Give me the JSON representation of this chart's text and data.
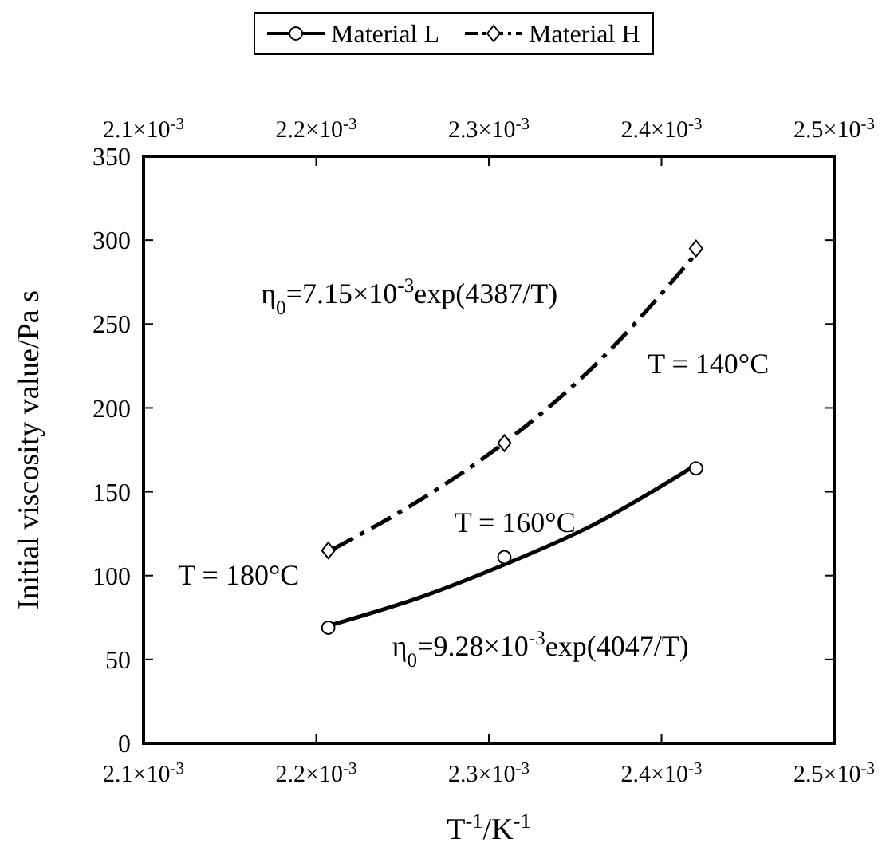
{
  "chart_data": {
    "type": "scatter",
    "xlabel": "T$^{-1}$/K$^{-1}$",
    "ylabel": "Initial viscosity value/Pa s",
    "xlim": [
      0.0021,
      0.0025
    ],
    "xticks": [
      {
        "value": 0.0021,
        "label": "2.1×10$^{-3}$"
      },
      {
        "value": 0.0022,
        "label": "2.2×10$^{-3}$"
      },
      {
        "value": 0.0023,
        "label": "2.3×10$^{-3}$"
      },
      {
        "value": 0.0024,
        "label": "2.4×10$^{-3}$"
      },
      {
        "value": 0.0025,
        "label": "2.5×10$^{-3}$"
      }
    ],
    "x2lim": [
      0.0021,
      0.0025
    ],
    "x2ticks": [
      {
        "value": 0.0021,
        "label": "2.1×10$^{-3}$"
      },
      {
        "value": 0.0022,
        "label": "2.2×10$^{-3}$"
      },
      {
        "value": 0.0023,
        "label": "2.3×10$^{-3}$"
      },
      {
        "value": 0.0024,
        "label": "2.4×10$^{-3}$"
      },
      {
        "value": 0.0025,
        "label": "2.5×10$^{-3}$"
      }
    ],
    "ylim": [
      0,
      350
    ],
    "yticks": [
      0,
      50,
      100,
      150,
      200,
      250,
      300,
      350
    ],
    "grid": false,
    "legend": "top",
    "series": [
      {
        "name": "Material L",
        "marker": "circle",
        "line_style": "solid",
        "color": "#000000",
        "x": [
          0.002207,
          0.002309,
          0.00242
        ],
        "values": [
          69,
          111,
          164
        ]
      },
      {
        "type": "line",
        "line_style": "solid",
        "color": "#000000",
        "x": [
          0.00221,
          0.00226,
          0.00231,
          0.00236,
          0.00242
        ],
        "values": [
          71,
          87,
          107,
          130,
          166
        ]
      },
      {
        "name": "Material H",
        "marker": "diamond",
        "line_style": "dashed",
        "color": "#000000",
        "x": [
          0.002207,
          0.002309,
          0.00242
        ],
        "values": [
          115,
          179,
          295
        ]
      },
      {
        "type": "line",
        "line_style": "dashed",
        "color": "#000000",
        "x": [
          0.00221,
          0.00226,
          0.00231,
          0.00236,
          0.00242
        ],
        "values": [
          116,
          145,
          180,
          224,
          292
        ]
      }
    ],
    "annotations": [
      "η$_{0}$=7.15×10$^{-3}$exp(4387/T)",
      "η$_{0}$=9.28×10$^{-3}$exp(4047/T)",
      "T = 140°C",
      "T = 160°C",
      "T = 180°C"
    ]
  }
}
